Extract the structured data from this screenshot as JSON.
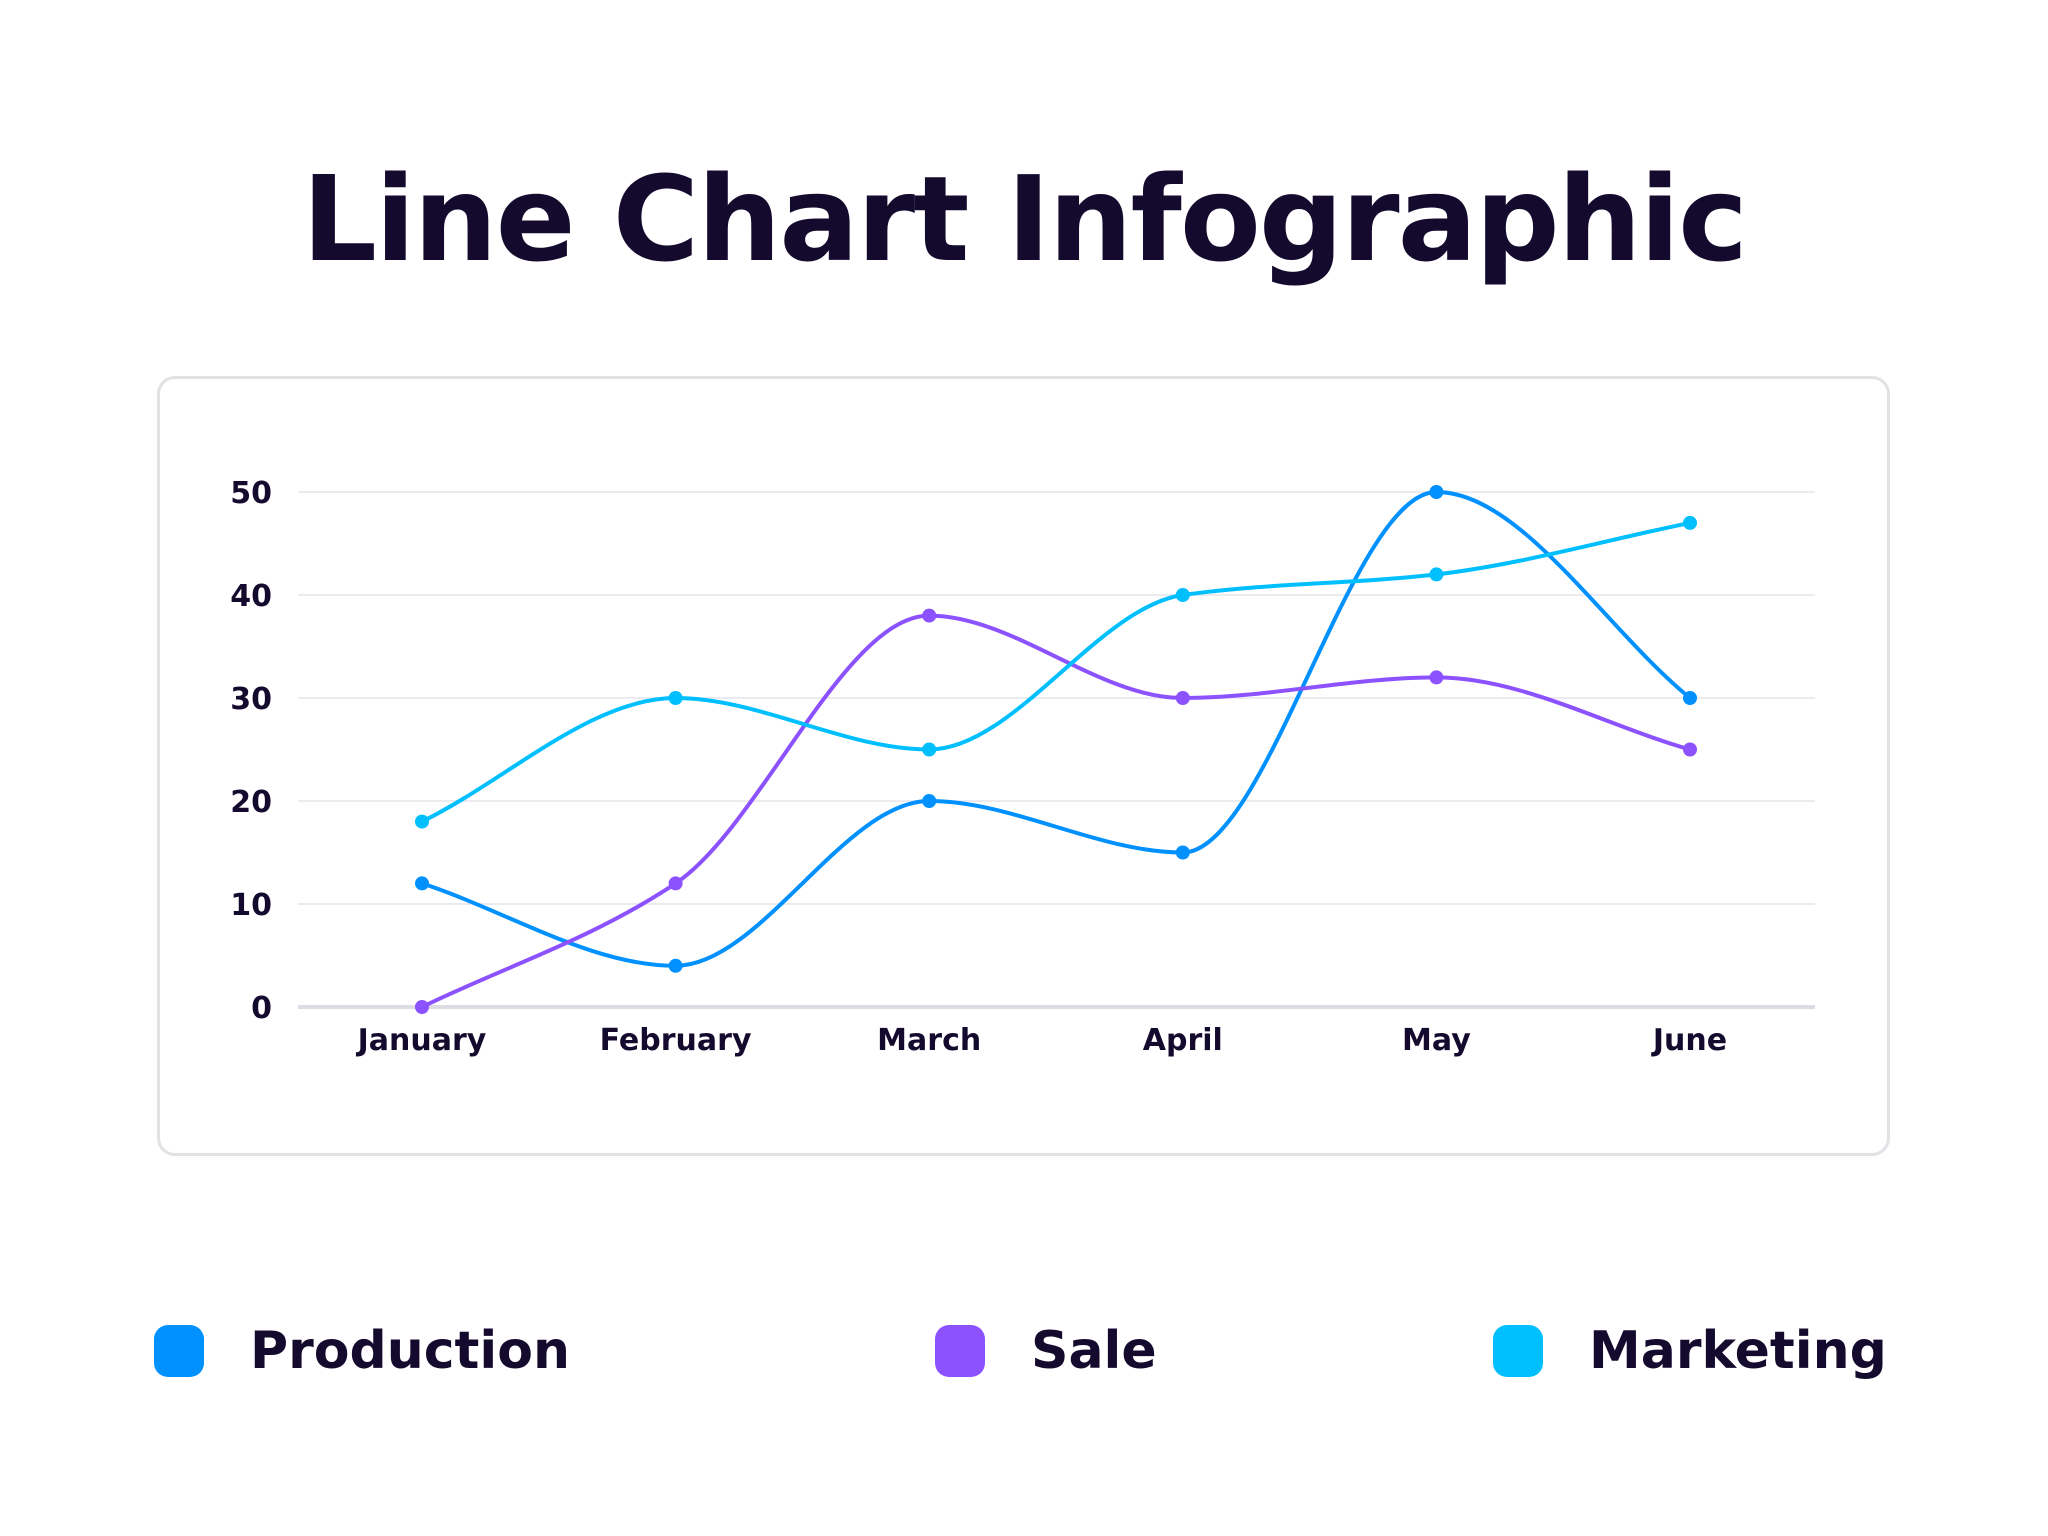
{
  "chart_data": {
    "type": "line",
    "title": "Line Chart Infographic",
    "categories": [
      "January",
      "February",
      "March",
      "April",
      "May",
      "June"
    ],
    "ylim": [
      0,
      50
    ],
    "yticks": [
      0,
      10,
      20,
      30,
      40,
      50
    ],
    "grid": true,
    "curve": "smooth",
    "legend_placement": "bottom",
    "series": [
      {
        "name": "Production",
        "color": "#0091ff",
        "values": [
          12,
          4,
          20,
          15,
          50,
          30
        ]
      },
      {
        "name": "Sale",
        "color": "#8c52ff",
        "values": [
          0,
          12,
          38,
          30,
          32,
          25
        ]
      },
      {
        "name": "Marketing",
        "color": "#00bfff",
        "values": [
          18,
          30,
          25,
          40,
          42,
          47
        ]
      }
    ]
  }
}
